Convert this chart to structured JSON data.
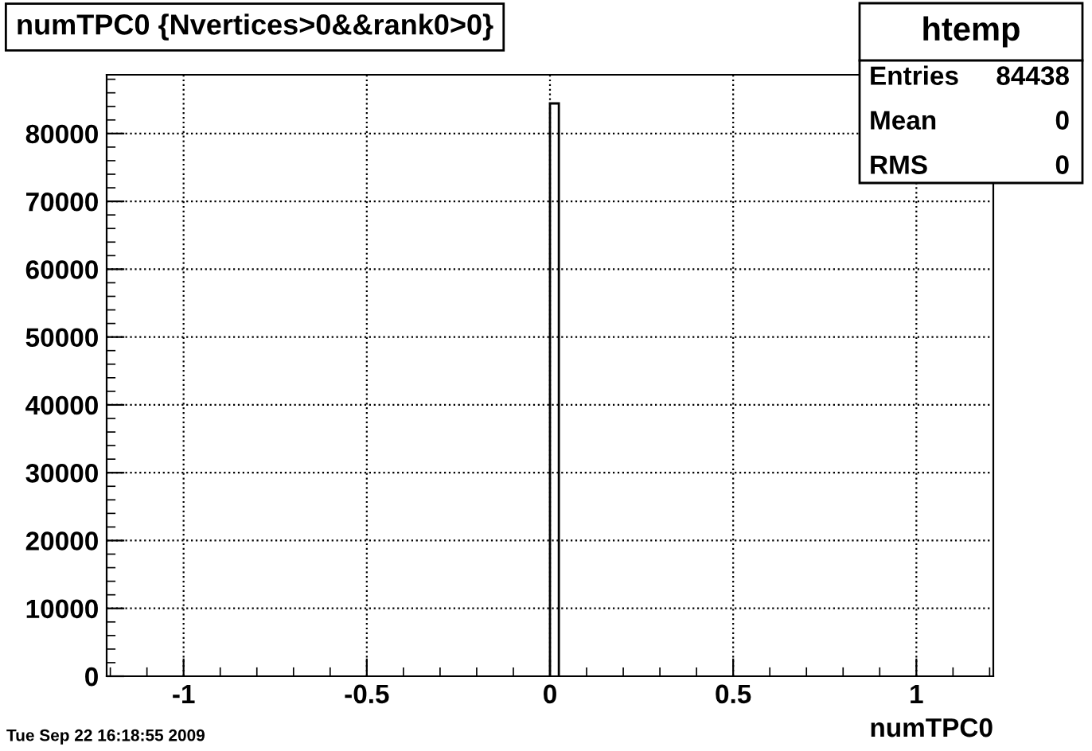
{
  "chart_data": {
    "type": "histogram",
    "title": "numTPC0 {Nvertices>0&&rank0>0}",
    "xlabel": "numTPC0",
    "bins": [
      0,
      0.0242
    ],
    "values": [
      84438
    ],
    "color": "#000000",
    "xlim": [
      -1.21,
      1.21
    ],
    "ylim": [
      0,
      88660
    ],
    "xticks": [
      -1,
      -0.5,
      0,
      0.5,
      1
    ],
    "yticks": [
      0,
      10000,
      20000,
      30000,
      40000,
      50000,
      60000,
      70000,
      80000
    ],
    "grid": true,
    "annotations": [
      "htemp",
      "Entries",
      "84438",
      "Mean",
      "0",
      "RMS",
      "0",
      "Tue Sep 22 16:18:55 2009"
    ]
  }
}
